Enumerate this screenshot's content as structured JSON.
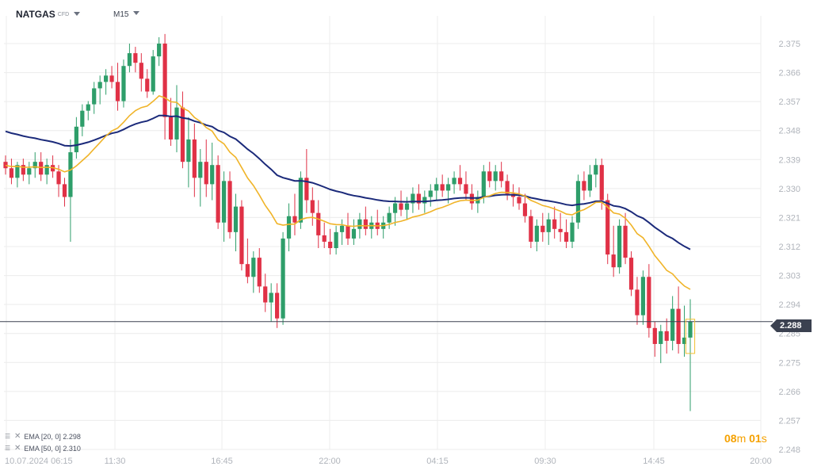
{
  "header": {
    "symbol": "NATGAS",
    "symbol_type": "CFD",
    "timeframe": "M15"
  },
  "indicators": [
    {
      "label": "EMA [20, 0] 2.298",
      "color": "#f0b429"
    },
    {
      "label": "EMA [50, 0] 2.310",
      "color": "#1b2a7a"
    }
  ],
  "current_price": "2.288",
  "timer": {
    "minutes": "08",
    "m_unit": "m",
    "seconds": "01",
    "s_unit": "s"
  },
  "chart_data": {
    "type": "candlestick",
    "y_ticks": [
      "2.375",
      "2.366",
      "2.357",
      "2.348",
      "2.339",
      "2.330",
      "2.321",
      "2.312",
      "2.303",
      "2.294",
      "2.285",
      "2.275",
      "2.266",
      "2.257",
      "2.248"
    ],
    "ylim": [
      2.248,
      2.375
    ],
    "x_ticks": [
      "10.07.2024  06:15",
      "11:30",
      "16:45",
      "22:00",
      "04:15",
      "09:30",
      "14:45",
      "20:00"
    ],
    "ema20_last": 2.298,
    "ema50_last": 2.31,
    "colors": {
      "up": "#2e9e6a",
      "down": "#e03146",
      "ema20": "#f0b429",
      "ema50": "#1b2a7a",
      "grid": "#ececec",
      "axis_text": "#b0b4bb"
    },
    "candles": [
      [
        2.338,
        2.34,
        2.334,
        2.336
      ],
      [
        2.336,
        2.339,
        2.331,
        2.333
      ],
      [
        2.333,
        2.338,
        2.33,
        2.337
      ],
      [
        2.337,
        2.339,
        2.332,
        2.334
      ],
      [
        2.334,
        2.338,
        2.331,
        2.336
      ],
      [
        2.336,
        2.341,
        2.333,
        2.338
      ],
      [
        2.338,
        2.341,
        2.332,
        2.334
      ],
      [
        2.334,
        2.339,
        2.331,
        2.337
      ],
      [
        2.337,
        2.34,
        2.333,
        2.335
      ],
      [
        2.335,
        2.337,
        2.327,
        2.331
      ],
      [
        2.331,
        2.333,
        2.324,
        2.327
      ],
      [
        2.327,
        2.345,
        2.313,
        2.341
      ],
      [
        2.341,
        2.352,
        2.339,
        2.349
      ],
      [
        2.349,
        2.356,
        2.346,
        2.354
      ],
      [
        2.354,
        2.357,
        2.351,
        2.356
      ],
      [
        2.356,
        2.363,
        2.353,
        2.361
      ],
      [
        2.361,
        2.365,
        2.356,
        2.363
      ],
      [
        2.363,
        2.367,
        2.359,
        2.365
      ],
      [
        2.365,
        2.368,
        2.361,
        2.363
      ],
      [
        2.363,
        2.369,
        2.354,
        2.357
      ],
      [
        2.357,
        2.37,
        2.355,
        2.368
      ],
      [
        2.368,
        2.375,
        2.366,
        2.372
      ],
      [
        2.372,
        2.374,
        2.366,
        2.369
      ],
      [
        2.369,
        2.372,
        2.36,
        2.364
      ],
      [
        2.364,
        2.367,
        2.358,
        2.36
      ],
      [
        2.36,
        2.373,
        2.359,
        2.371
      ],
      [
        2.371,
        2.377,
        2.368,
        2.375
      ],
      [
        2.375,
        2.378,
        2.345,
        2.352
      ],
      [
        2.352,
        2.358,
        2.343,
        2.345
      ],
      [
        2.345,
        2.362,
        2.341,
        2.355
      ],
      [
        2.355,
        2.36,
        2.336,
        2.338
      ],
      [
        2.338,
        2.352,
        2.33,
        2.345
      ],
      [
        2.345,
        2.35,
        2.327,
        2.333
      ],
      [
        2.333,
        2.342,
        2.324,
        2.338
      ],
      [
        2.338,
        2.345,
        2.327,
        2.331
      ],
      [
        2.331,
        2.344,
        2.326,
        2.337
      ],
      [
        2.337,
        2.34,
        2.317,
        2.319
      ],
      [
        2.319,
        2.335,
        2.313,
        2.332
      ],
      [
        2.332,
        2.335,
        2.314,
        2.316
      ],
      [
        2.316,
        2.328,
        2.31,
        2.324
      ],
      [
        2.324,
        2.326,
        2.304,
        2.306
      ],
      [
        2.306,
        2.314,
        2.3,
        2.302
      ],
      [
        2.302,
        2.31,
        2.297,
        2.308
      ],
      [
        2.308,
        2.311,
        2.297,
        2.299
      ],
      [
        2.299,
        2.303,
        2.291,
        2.294
      ],
      [
        2.294,
        2.3,
        2.288,
        2.297
      ],
      [
        2.297,
        2.3,
        2.286,
        2.289
      ],
      [
        2.289,
        2.316,
        2.287,
        2.314
      ],
      [
        2.314,
        2.325,
        2.31,
        2.321
      ],
      [
        2.321,
        2.328,
        2.315,
        2.319
      ],
      [
        2.319,
        2.335,
        2.317,
        2.333
      ],
      [
        2.333,
        2.342,
        2.322,
        2.326
      ],
      [
        2.326,
        2.33,
        2.318,
        2.322
      ],
      [
        2.322,
        2.326,
        2.311,
        2.315
      ],
      [
        2.315,
        2.319,
        2.311,
        2.313
      ],
      [
        2.313,
        2.317,
        2.309,
        2.311
      ],
      [
        2.311,
        2.318,
        2.309,
        2.316
      ],
      [
        2.316,
        2.32,
        2.312,
        2.318
      ],
      [
        2.318,
        2.322,
        2.312,
        2.314
      ],
      [
        2.314,
        2.32,
        2.312,
        2.317
      ],
      [
        2.317,
        2.322,
        2.314,
        2.32
      ],
      [
        2.32,
        2.324,
        2.315,
        2.317
      ],
      [
        2.317,
        2.321,
        2.314,
        2.319
      ],
      [
        2.319,
        2.323,
        2.315,
        2.317
      ],
      [
        2.317,
        2.321,
        2.314,
        2.319
      ],
      [
        2.319,
        2.324,
        2.317,
        2.322
      ],
      [
        2.322,
        2.327,
        2.318,
        2.325
      ],
      [
        2.325,
        2.329,
        2.321,
        2.323
      ],
      [
        2.323,
        2.327,
        2.32,
        2.325
      ],
      [
        2.325,
        2.33,
        2.322,
        2.328
      ],
      [
        2.328,
        2.331,
        2.323,
        2.325
      ],
      [
        2.325,
        2.329,
        2.322,
        2.327
      ],
      [
        2.327,
        2.331,
        2.324,
        2.329
      ],
      [
        2.329,
        2.333,
        2.326,
        2.331
      ],
      [
        2.331,
        2.334,
        2.327,
        2.329
      ],
      [
        2.329,
        2.333,
        2.325,
        2.331
      ],
      [
        2.331,
        2.335,
        2.328,
        2.333
      ],
      [
        2.333,
        2.337,
        2.329,
        2.331
      ],
      [
        2.331,
        2.335,
        2.326,
        2.328
      ],
      [
        2.328,
        2.331,
        2.323,
        2.325
      ],
      [
        2.325,
        2.329,
        2.322,
        2.327
      ],
      [
        2.327,
        2.337,
        2.325,
        2.335
      ],
      [
        2.335,
        2.338,
        2.33,
        2.332
      ],
      [
        2.332,
        2.337,
        2.329,
        2.335
      ],
      [
        2.335,
        2.338,
        2.33,
        2.332
      ],
      [
        2.332,
        2.334,
        2.326,
        2.328
      ],
      [
        2.328,
        2.331,
        2.324,
        2.327
      ],
      [
        2.327,
        2.33,
        2.323,
        2.325
      ],
      [
        2.325,
        2.328,
        2.319,
        2.321
      ],
      [
        2.321,
        2.323,
        2.311,
        2.313
      ],
      [
        2.313,
        2.32,
        2.31,
        2.318
      ],
      [
        2.318,
        2.322,
        2.313,
        2.316
      ],
      [
        2.316,
        2.322,
        2.312,
        2.32
      ],
      [
        2.32,
        2.324,
        2.314,
        2.317
      ],
      [
        2.317,
        2.322,
        2.313,
        2.316
      ],
      [
        2.316,
        2.32,
        2.311,
        2.313
      ],
      [
        2.313,
        2.321,
        2.311,
        2.319
      ],
      [
        2.319,
        2.334,
        2.317,
        2.332
      ],
      [
        2.332,
        2.335,
        2.326,
        2.329
      ],
      [
        2.329,
        2.337,
        2.327,
        2.334
      ],
      [
        2.334,
        2.339,
        2.33,
        2.337
      ],
      [
        2.337,
        2.339,
        2.323,
        2.326
      ],
      [
        2.326,
        2.328,
        2.306,
        2.309
      ],
      [
        2.309,
        2.318,
        2.302,
        2.305
      ],
      [
        2.305,
        2.32,
        2.303,
        2.318
      ],
      [
        2.318,
        2.322,
        2.306,
        2.308
      ],
      [
        2.308,
        2.31,
        2.296,
        2.298
      ],
      [
        2.298,
        2.302,
        2.287,
        2.29
      ],
      [
        2.29,
        2.304,
        2.287,
        2.302
      ],
      [
        2.302,
        2.306,
        2.283,
        2.286
      ],
      [
        2.286,
        2.288,
        2.277,
        2.281
      ],
      [
        2.281,
        2.287,
        2.275,
        2.285
      ],
      [
        2.285,
        2.289,
        2.278,
        2.282
      ],
      [
        2.282,
        2.296,
        2.279,
        2.292
      ],
      [
        2.292,
        2.299,
        2.278,
        2.281
      ],
      [
        2.281,
        2.293,
        2.277,
        2.283
      ],
      [
        2.283,
        2.295,
        2.26,
        2.288
      ]
    ]
  }
}
